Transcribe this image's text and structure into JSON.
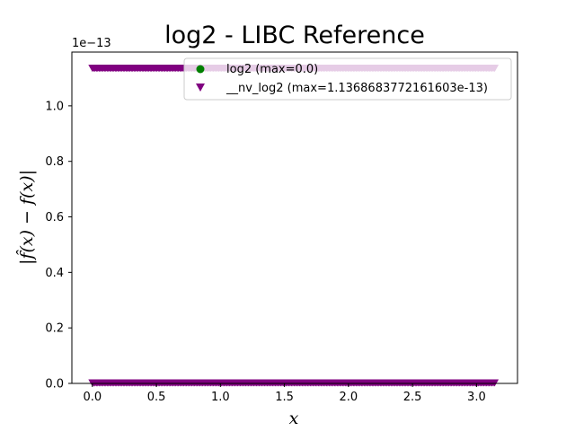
{
  "chart_data": {
    "type": "scatter",
    "title": "log2 - LIBC Reference",
    "xlabel": "x",
    "ylabel": "|f̂(x) − f(x)|",
    "offset_text": "1e−13",
    "xlim": [
      -0.16,
      3.32
    ],
    "ylim": [
      0.0,
      1.1937e-13
    ],
    "x_ticks": [
      0.0,
      0.5,
      1.0,
      1.5,
      2.0,
      2.5,
      3.0
    ],
    "x_tick_labels": [
      "0.0",
      "0.5",
      "1.0",
      "1.5",
      "2.0",
      "2.5",
      "3.0"
    ],
    "y_ticks": [
      0.0,
      2e-14,
      4e-14,
      6e-14,
      8e-14,
      1e-13
    ],
    "y_tick_labels": [
      "0.0",
      "0.2",
      "0.4",
      "0.6",
      "0.8",
      "1.0"
    ],
    "grid": false,
    "legend_position": "upper right",
    "series": [
      {
        "name": "log2 (max=0.0)",
        "marker": "circle",
        "color": "#008000",
        "x_range": [
          0.0,
          3.1416
        ],
        "y_constant": 0.0
      },
      {
        "name": "__nv_log2 (max=1.1368683772161603e-13)",
        "marker": "triangle-down",
        "color": "#800080",
        "x_range": [
          0.0,
          3.1416
        ],
        "y_bottom": 0.0,
        "y_top": 1.1368683772161603e-13
      }
    ]
  }
}
